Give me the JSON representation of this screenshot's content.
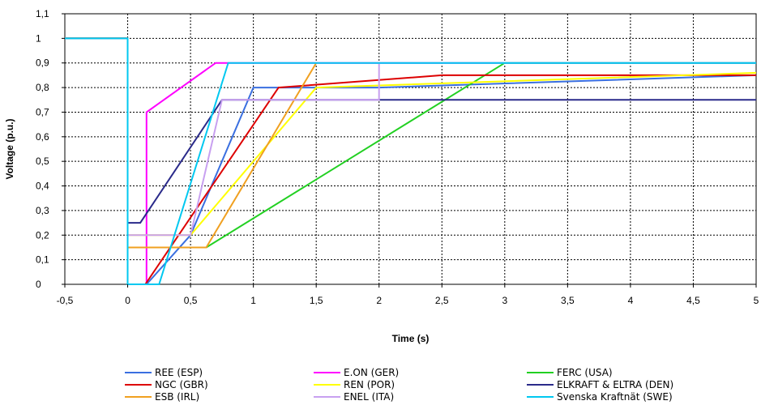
{
  "chart_data": {
    "type": "line",
    "title": "",
    "xlabel": "Time (s)",
    "ylabel": "Voltage (p.u.)",
    "xlim": [
      -0.5,
      5
    ],
    "ylim": [
      0,
      1.1
    ],
    "x_ticks": [
      "-0,5",
      "0",
      "0,5",
      "1",
      "1,5",
      "2",
      "2,5",
      "3",
      "3,5",
      "4",
      "4,5",
      "5"
    ],
    "y_ticks": [
      "0",
      "0,1",
      "0,2",
      "0,3",
      "0,4",
      "0,5",
      "0,6",
      "0,7",
      "0,8",
      "0,9",
      "1",
      "1,1"
    ],
    "grid": true,
    "legend_position": "bottom",
    "series": [
      {
        "name": "REE (ESP)",
        "color": "#3a6fe0",
        "points": [
          [
            -0.5,
            1
          ],
          [
            0,
            1
          ],
          [
            0,
            0
          ],
          [
            0.15,
            0
          ],
          [
            0.5,
            0.2
          ],
          [
            1,
            0.8
          ],
          [
            2,
            0.8
          ],
          [
            5,
            0.85
          ]
        ]
      },
      {
        "name": "E.ON (GER)",
        "color": "#ff00ff",
        "points": [
          [
            -0.5,
            1
          ],
          [
            0,
            1
          ],
          [
            0,
            0
          ],
          [
            0.15,
            0
          ],
          [
            0.15,
            0.7
          ],
          [
            0.7,
            0.9
          ],
          [
            5,
            0.9
          ]
        ]
      },
      {
        "name": "FERC (USA)",
        "color": "#22d022",
        "points": [
          [
            -0.5,
            1
          ],
          [
            0,
            1
          ],
          [
            0,
            0.15
          ],
          [
            0.625,
            0.15
          ],
          [
            3,
            0.9
          ],
          [
            5,
            0.9
          ]
        ]
      },
      {
        "name": "NGC (GBR)",
        "color": "#dd0000",
        "points": [
          [
            -0.5,
            1
          ],
          [
            0,
            1
          ],
          [
            0,
            0
          ],
          [
            0.14,
            0
          ],
          [
            1.2,
            0.8
          ],
          [
            2.5,
            0.85
          ],
          [
            5,
            0.85
          ]
        ]
      },
      {
        "name": "REN (POR)",
        "color": "#ffff00",
        "points": [
          [
            -0.5,
            1
          ],
          [
            0,
            1
          ],
          [
            0,
            0.2
          ],
          [
            0.5,
            0.2
          ],
          [
            1.5,
            0.8
          ],
          [
            5,
            0.86
          ]
        ]
      },
      {
        "name": "ELKRAFT & ELTRA (DEN)",
        "color": "#2a2a8a",
        "points": [
          [
            -0.5,
            1
          ],
          [
            0,
            1
          ],
          [
            0,
            0.25
          ],
          [
            0.1,
            0.25
          ],
          [
            0.75,
            0.75
          ],
          [
            5,
            0.75
          ]
        ]
      },
      {
        "name": "ESB (IRL)",
        "color": "#f0a020",
        "points": [
          [
            -0.5,
            1
          ],
          [
            0,
            1
          ],
          [
            0,
            0.15
          ],
          [
            0.625,
            0.15
          ],
          [
            1.5,
            0.9
          ]
        ]
      },
      {
        "name": "ENEL (ITA)",
        "color": "#c8a0f0",
        "points": [
          [
            -0.5,
            1
          ],
          [
            0,
            1
          ],
          [
            0,
            0.2
          ],
          [
            0.5,
            0.2
          ],
          [
            0.75,
            0.75
          ],
          [
            2,
            0.75
          ],
          [
            2,
            0.9
          ],
          [
            5,
            0.9
          ]
        ]
      },
      {
        "name": "Svenska Kraftnät (SWE)",
        "color": "#00c8f0",
        "points": [
          [
            -0.5,
            1
          ],
          [
            0,
            1
          ],
          [
            0,
            0
          ],
          [
            0.25,
            0
          ],
          [
            0.8,
            0.9
          ],
          [
            5,
            0.9
          ]
        ]
      }
    ]
  }
}
